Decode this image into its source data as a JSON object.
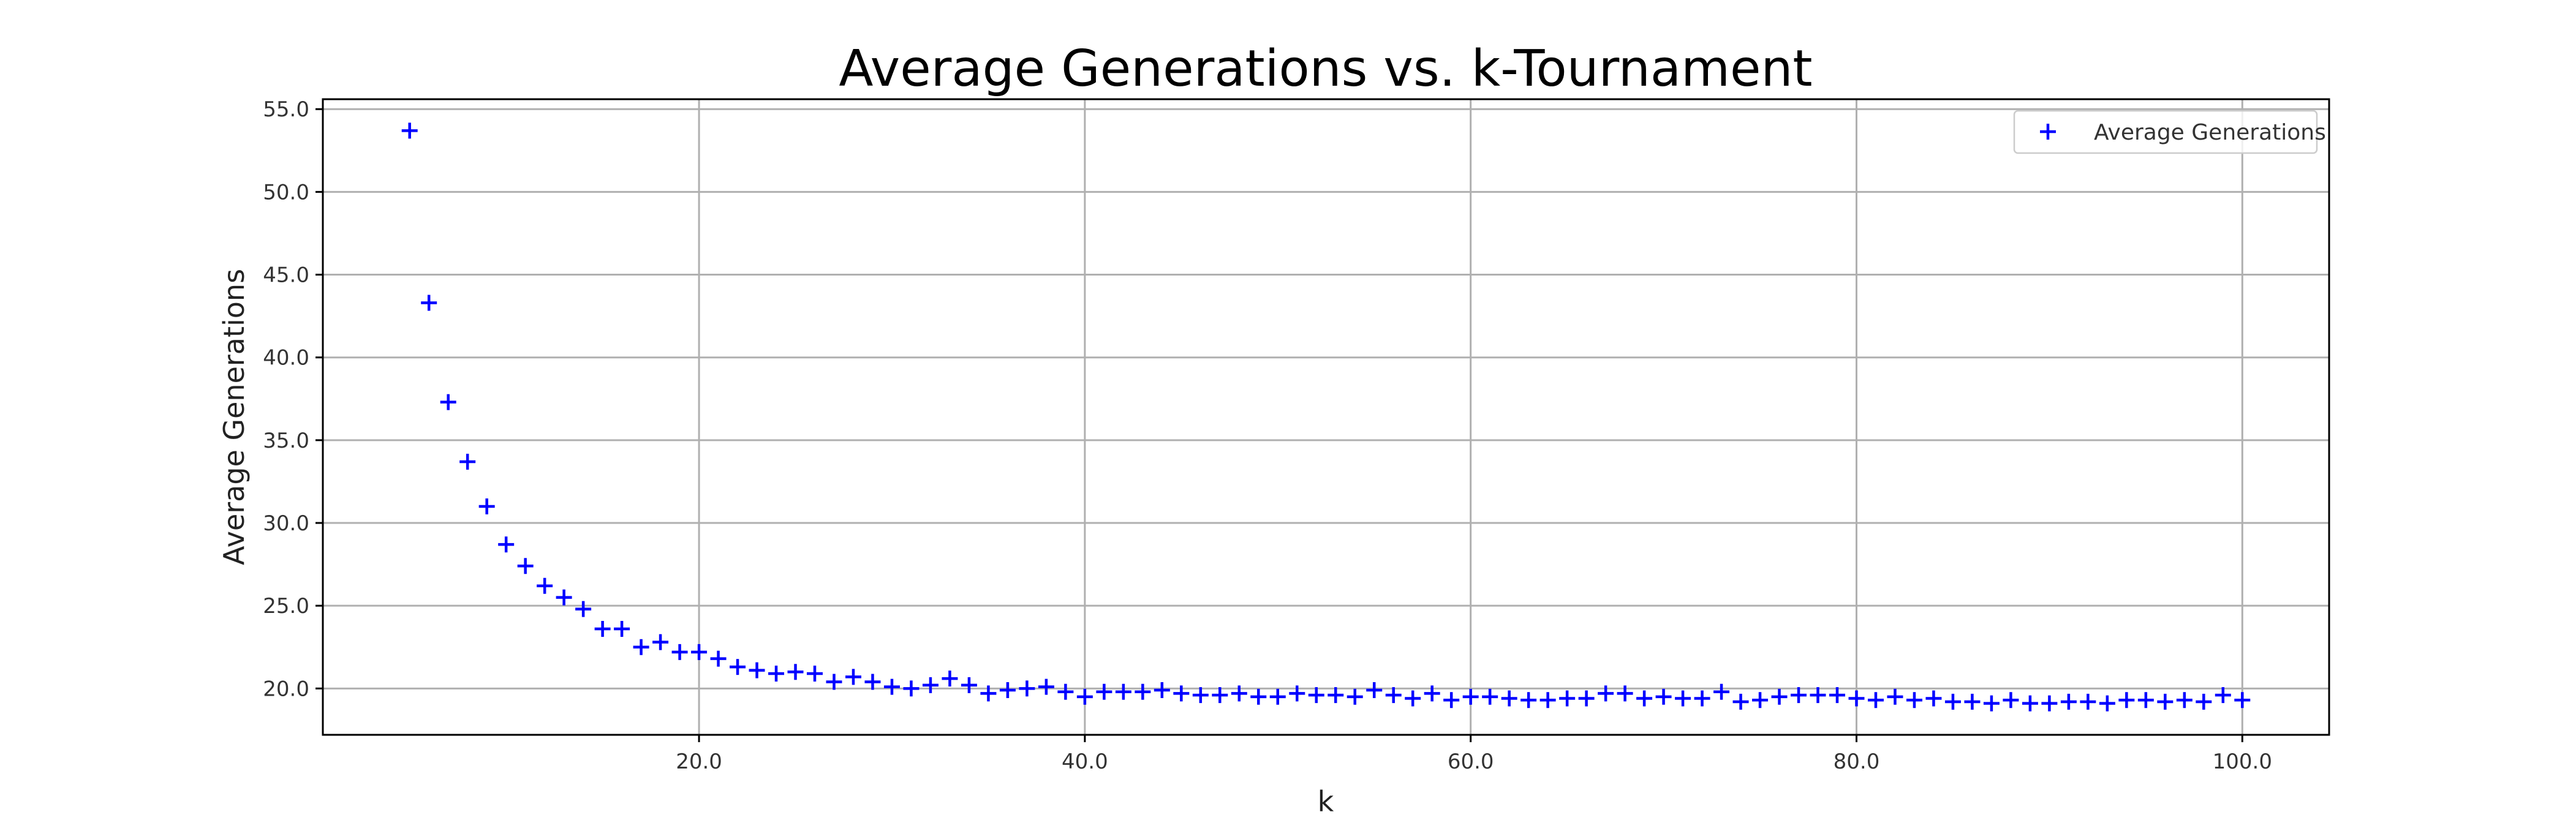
{
  "chart_data": {
    "type": "scatter",
    "title": "Average Generations vs. k-Tournament",
    "xlabel": "k",
    "ylabel": "Average Generations",
    "xlim": [
      0.5,
      104.5
    ],
    "ylim": [
      17.2,
      55.6
    ],
    "grid": true,
    "legend_position": "top-right",
    "x_ticks": [
      "20.0",
      "40.0",
      "60.0",
      "80.0",
      "100.0"
    ],
    "y_ticks": [
      "20.0",
      "25.0",
      "30.0",
      "35.0",
      "40.0",
      "45.0",
      "50.0",
      "55.0"
    ],
    "marker_color": "#0000ff",
    "series": [
      {
        "name": "Average Generations",
        "marker": "plus",
        "x": [
          5,
          6,
          7,
          8,
          9,
          10,
          11,
          12,
          13,
          14,
          15,
          16,
          17,
          18,
          19,
          20,
          21,
          22,
          23,
          24,
          25,
          26,
          27,
          28,
          29,
          30,
          31,
          32,
          33,
          34,
          35,
          36,
          37,
          38,
          39,
          40,
          41,
          42,
          43,
          44,
          45,
          46,
          47,
          48,
          49,
          50,
          51,
          52,
          53,
          54,
          55,
          56,
          57,
          58,
          59,
          60,
          61,
          62,
          63,
          64,
          65,
          66,
          67,
          68,
          69,
          70,
          71,
          72,
          73,
          74,
          75,
          76,
          77,
          78,
          79,
          80,
          81,
          82,
          83,
          84,
          85,
          86,
          87,
          88,
          89,
          90,
          91,
          92,
          93,
          94,
          95,
          96,
          97,
          98,
          99,
          100
        ],
        "y": [
          53.7,
          43.3,
          37.3,
          33.7,
          31.0,
          28.7,
          27.4,
          26.2,
          25.5,
          24.8,
          23.6,
          23.6,
          22.5,
          22.8,
          22.2,
          22.2,
          21.8,
          21.3,
          21.1,
          20.9,
          21.0,
          20.9,
          20.4,
          20.7,
          20.4,
          20.1,
          20.0,
          20.2,
          20.6,
          20.2,
          19.7,
          19.9,
          20.0,
          20.1,
          19.8,
          19.5,
          19.8,
          19.8,
          19.8,
          19.9,
          19.7,
          19.6,
          19.6,
          19.7,
          19.5,
          19.5,
          19.7,
          19.6,
          19.6,
          19.5,
          19.9,
          19.6,
          19.4,
          19.7,
          19.3,
          19.5,
          19.5,
          19.4,
          19.3,
          19.3,
          19.4,
          19.4,
          19.7,
          19.7,
          19.4,
          19.5,
          19.4,
          19.4,
          19.8,
          19.2,
          19.3,
          19.5,
          19.6,
          19.6,
          19.6,
          19.4,
          19.3,
          19.5,
          19.3,
          19.4,
          19.2,
          19.2,
          19.1,
          19.3,
          19.1,
          19.1,
          19.2,
          19.2,
          19.1,
          19.3,
          19.3,
          19.2,
          19.3,
          19.2,
          19.6,
          19.3
        ]
      }
    ]
  }
}
